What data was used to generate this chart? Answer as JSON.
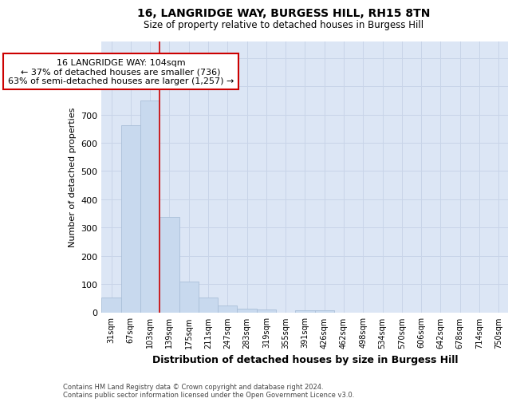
{
  "title": "16, LANGRIDGE WAY, BURGESS HILL, RH15 8TN",
  "subtitle": "Size of property relative to detached houses in Burgess Hill",
  "xlabel": "Distribution of detached houses by size in Burgess Hill",
  "ylabel": "Number of detached properties",
  "bar_labels": [
    "31sqm",
    "67sqm",
    "103sqm",
    "139sqm",
    "175sqm",
    "211sqm",
    "247sqm",
    "283sqm",
    "319sqm",
    "355sqm",
    "391sqm",
    "426sqm",
    "462sqm",
    "498sqm",
    "534sqm",
    "570sqm",
    "606sqm",
    "642sqm",
    "678sqm",
    "714sqm",
    "750sqm"
  ],
  "bar_values": [
    52,
    662,
    750,
    338,
    108,
    52,
    25,
    13,
    10,
    0,
    6,
    6,
    0,
    0,
    0,
    0,
    0,
    0,
    0,
    0,
    0
  ],
  "bar_color": "#c8d9ee",
  "bar_edge_color": "#aabfd8",
  "grid_color": "#c8d4e8",
  "property_line_x": 2.5,
  "property_line_color": "#cc0000",
  "annotation_text": "16 LANGRIDGE WAY: 104sqm\n← 37% of detached houses are smaller (736)\n63% of semi-detached houses are larger (1,257) →",
  "annotation_box_color": "#ffffff",
  "annotation_box_edge_color": "#cc0000",
  "ylim": [
    0,
    960
  ],
  "yticks": [
    0,
    100,
    200,
    300,
    400,
    500,
    600,
    700,
    800,
    900
  ],
  "footnote": "Contains HM Land Registry data © Crown copyright and database right 2024.\nContains public sector information licensed under the Open Government Licence v3.0.",
  "fig_bg_color": "#ffffff",
  "plot_bg_color": "#dce6f5"
}
